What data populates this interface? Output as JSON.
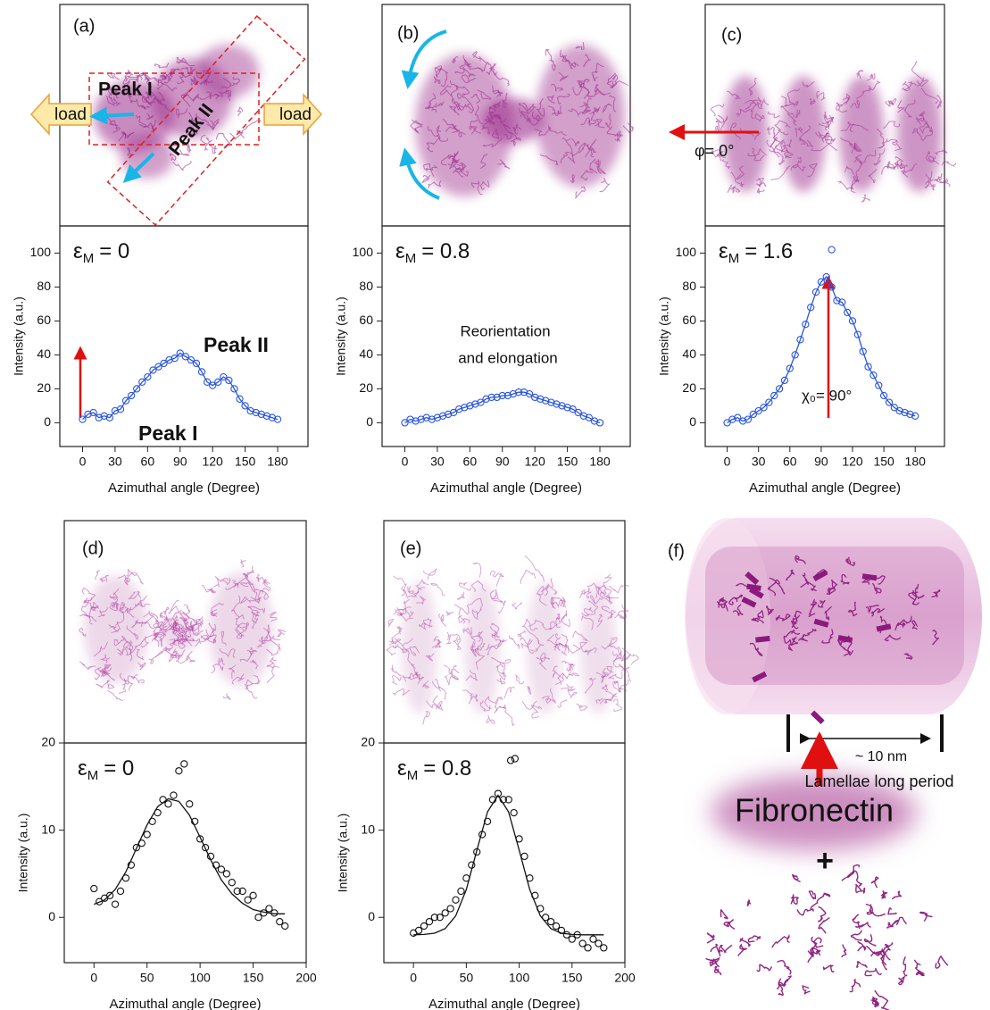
{
  "chart_data": [
    {
      "type": "scatter",
      "xlabel": "Azimuthal angle (Degree)",
      "ylabel": "Intensity (a.u.)",
      "xlim": [
        -21,
        208
      ],
      "ylim": [
        -14,
        116
      ],
      "xticks": [
        0,
        30,
        60,
        90,
        120,
        150,
        180
      ],
      "yticks": [
        0,
        20,
        40,
        60,
        80,
        100
      ],
      "strain": {
        "symbol": "ε",
        "subscript": "M",
        "text": "= 0"
      },
      "annotations": [
        "Peak II",
        "Peak I"
      ],
      "series": [
        {
          "color": "#2a55e0",
          "marker": "circle",
          "line": true,
          "x": [
            0,
            5,
            10,
            15,
            20,
            25,
            30,
            35,
            40,
            45,
            50,
            55,
            60,
            65,
            70,
            75,
            80,
            85,
            90,
            95,
            100,
            105,
            110,
            115,
            120,
            125,
            130,
            135,
            140,
            145,
            150,
            155,
            160,
            165,
            170,
            175,
            180
          ],
          "values": [
            2,
            5,
            6,
            3,
            4,
            3,
            7,
            8,
            13,
            16,
            20,
            24,
            27,
            31,
            33,
            35,
            37,
            38,
            41,
            39,
            37,
            35,
            30,
            24,
            22,
            24,
            27,
            25,
            20,
            14,
            10,
            7,
            6,
            5,
            4,
            3,
            2
          ]
        }
      ]
    },
    {
      "type": "scatter",
      "xlabel": "Azimuthal angle (Degree)",
      "ylabel": "Intensity (a.u.)",
      "xlim": [
        -21,
        208
      ],
      "ylim": [
        -14,
        116
      ],
      "xticks": [
        0,
        30,
        60,
        90,
        120,
        150,
        180
      ],
      "yticks": [
        0,
        20,
        40,
        60,
        80,
        100
      ],
      "strain": {
        "symbol": "ε",
        "subscript": "M",
        "text": "= 0.8"
      },
      "annotations": [
        "Reorientation",
        "and elongation"
      ],
      "series": [
        {
          "color": "#2a55e0",
          "marker": "circle",
          "line": true,
          "x": [
            0,
            5,
            10,
            15,
            20,
            25,
            30,
            35,
            40,
            45,
            50,
            55,
            60,
            65,
            70,
            75,
            80,
            85,
            90,
            95,
            100,
            105,
            110,
            115,
            120,
            125,
            130,
            135,
            140,
            145,
            150,
            155,
            160,
            165,
            170,
            175,
            180
          ],
          "values": [
            0,
            2,
            1,
            2,
            3,
            2,
            3,
            4,
            5,
            6,
            8,
            9,
            10,
            11,
            12,
            14,
            15,
            15,
            16,
            16,
            17,
            18,
            18,
            17,
            15,
            14,
            13,
            12,
            11,
            10,
            9,
            8,
            6,
            4,
            3,
            1,
            0
          ]
        }
      ]
    },
    {
      "type": "scatter",
      "xlabel": "Azimuthal angle (Degree)",
      "ylabel": "Intensity (a.u.)",
      "xlim": [
        -21,
        208
      ],
      "ylim": [
        -14,
        116
      ],
      "xticks": [
        0,
        30,
        60,
        90,
        120,
        150,
        180
      ],
      "yticks": [
        0,
        20,
        40,
        60,
        80,
        100
      ],
      "strain": {
        "symbol": "ε",
        "subscript": "M",
        "text": "= 1.6"
      },
      "annotations": [
        "χ₀= 90°"
      ],
      "series": [
        {
          "color": "#2a55e0",
          "marker": "circle",
          "line": true,
          "x": [
            0,
            5,
            10,
            15,
            20,
            25,
            30,
            35,
            40,
            45,
            50,
            55,
            60,
            65,
            70,
            75,
            80,
            85,
            90,
            95,
            100,
            105,
            110,
            115,
            120,
            125,
            130,
            135,
            140,
            145,
            150,
            155,
            160,
            165,
            170,
            175,
            180
          ],
          "values": [
            0,
            2,
            3,
            1,
            2,
            5,
            7,
            9,
            12,
            16,
            20,
            25,
            32,
            40,
            49,
            58,
            68,
            77,
            83,
            86,
            80,
            72,
            71,
            65,
            60,
            52,
            42,
            33,
            28,
            22,
            16,
            12,
            9,
            7,
            6,
            5,
            4
          ]
        },
        {
          "color": "#2a55e0",
          "marker": "circle",
          "line": false,
          "x": [
            100
          ],
          "values": [
            102
          ]
        }
      ]
    },
    {
      "type": "scatter",
      "xlabel": "Azimuthal angle (Degree)",
      "ylabel": "Intensity (a.u.)",
      "xlim": [
        -28,
        200
      ],
      "ylim": [
        -5.2,
        20
      ],
      "xticks": [
        0,
        50,
        100,
        150,
        200
      ],
      "yticks": [
        0,
        10,
        20
      ],
      "strain": {
        "symbol": "ε",
        "subscript": "M",
        "text": "= 0"
      },
      "annotations": [],
      "series": [
        {
          "color": "#111111",
          "marker": "circle",
          "line": false,
          "x": [
            0,
            5,
            10,
            15,
            20,
            25,
            30,
            35,
            40,
            45,
            50,
            55,
            60,
            65,
            70,
            75,
            80,
            85,
            90,
            95,
            100,
            105,
            110,
            115,
            120,
            125,
            130,
            135,
            140,
            145,
            150,
            155,
            160,
            165,
            170,
            175,
            180
          ],
          "values": [
            3.3,
            1.8,
            2.2,
            2.5,
            1.5,
            3,
            4.5,
            6,
            8,
            8.5,
            9.5,
            11,
            12,
            13.5,
            13,
            14,
            16.8,
            17.6,
            13,
            11,
            9,
            8,
            7,
            6,
            5.5,
            5,
            4,
            3,
            3,
            2,
            2.5,
            0,
            0.5,
            1,
            0.5,
            -0.5,
            -1
          ]
        },
        {
          "color": "#111111",
          "marker": "none",
          "line": true,
          "x": [
            0,
            10,
            20,
            30,
            40,
            50,
            60,
            70,
            80,
            90,
            100,
            110,
            120,
            130,
            140,
            150,
            160,
            170,
            180
          ],
          "values": [
            1.5,
            2,
            3.2,
            5.2,
            7.9,
            10.6,
            12.7,
            13.6,
            13.3,
            11.7,
            9.2,
            6.6,
            4.3,
            2.7,
            1.6,
            0.9,
            0.6,
            0.4,
            0.4
          ]
        }
      ]
    },
    {
      "type": "scatter",
      "xlabel": "Azimuthal angle (Degree)",
      "ylabel": "Intensity (a.u.)",
      "xlim": [
        -28,
        200
      ],
      "ylim": [
        -5.2,
        20
      ],
      "xticks": [
        0,
        50,
        100,
        150,
        200
      ],
      "yticks": [
        0,
        10,
        20
      ],
      "strain": {
        "symbol": "ε",
        "subscript": "M",
        "text": "= 0.8"
      },
      "annotations": [],
      "series": [
        {
          "color": "#111111",
          "marker": "circle",
          "line": false,
          "x": [
            0,
            5,
            10,
            15,
            20,
            25,
            30,
            35,
            40,
            45,
            50,
            55,
            60,
            65,
            70,
            75,
            80,
            85,
            90,
            95,
            100,
            105,
            110,
            115,
            120,
            125,
            130,
            135,
            140,
            145,
            150,
            155,
            160,
            165,
            170,
            175,
            180
          ],
          "values": [
            -1.8,
            -1.5,
            -1,
            -0.5,
            0,
            0,
            0.5,
            1,
            2,
            3,
            4.5,
            6,
            7.5,
            9.5,
            11,
            13.5,
            14.2,
            13.5,
            13.5,
            12,
            9,
            7,
            4.5,
            2.5,
            1,
            0,
            -0.5,
            -1,
            -1.5,
            -2,
            -2.5,
            -2,
            -3,
            -3.5,
            -2.5,
            -3,
            -3.5
          ]
        },
        {
          "color": "#111111",
          "marker": "circle",
          "line": false,
          "x": [
            92,
            96
          ],
          "values": [
            18,
            18.2
          ]
        },
        {
          "color": "#111111",
          "marker": "none",
          "line": true,
          "x": [
            0,
            10,
            20,
            30,
            40,
            50,
            60,
            70,
            80,
            90,
            100,
            110,
            120,
            130,
            140,
            150,
            160,
            170,
            180
          ],
          "values": [
            -2,
            -1.96,
            -1.82,
            -1.3,
            0.17,
            3.2,
            7.7,
            12.1,
            14,
            12.1,
            7.7,
            3.2,
            0.17,
            -1.3,
            -1.82,
            -1.96,
            -2,
            -2,
            -2
          ]
        }
      ]
    }
  ],
  "illustrations": [
    {
      "label": "(a)",
      "texts": [
        "Peak I",
        "Peak II",
        "load",
        "load"
      ]
    },
    {
      "label": "(b)",
      "texts": []
    },
    {
      "label": "(c)",
      "texts": [
        "φ= 0°"
      ]
    },
    {
      "label": "(d)",
      "texts": []
    },
    {
      "label": "(e)",
      "texts": []
    },
    {
      "label": "(f)",
      "texts": [
        "~ 10 nm",
        "Lamellae long period",
        "Fibronectin",
        "+"
      ]
    }
  ]
}
